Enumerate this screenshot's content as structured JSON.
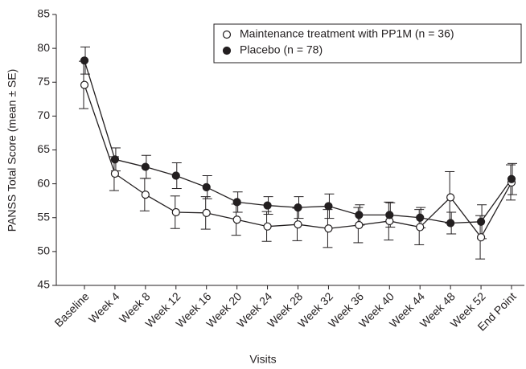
{
  "chart_data": {
    "type": "line",
    "x_label": "Visits",
    "y_label": "PANSS Total Score (mean ± SE)",
    "categories": [
      "Baseline",
      "Week 4",
      "Week 8",
      "Week 12",
      "Week 16",
      "Week 20",
      "Week 24",
      "Week 28",
      "Week 32",
      "Week 36",
      "Week 40",
      "Week 44",
      "Week 48",
      "Week 52",
      "End Point"
    ],
    "series": [
      {
        "name": "Maintenance treatment with PP1M (n = 36)",
        "color": "#231f20",
        "marker": "open",
        "values": [
          74.6,
          61.5,
          58.4,
          55.8,
          55.7,
          54.7,
          53.7,
          54.0,
          53.4,
          53.9,
          54.5,
          53.6,
          58.0,
          52.1,
          60.2
        ],
        "errors": [
          3.5,
          2.5,
          2.4,
          2.4,
          2.4,
          2.3,
          2.2,
          2.4,
          2.8,
          2.6,
          2.8,
          2.6,
          3.8,
          3.2,
          2.6
        ]
      },
      {
        "name": "Placebo (n = 78)",
        "color": "#231f20",
        "marker": "filled",
        "values": [
          78.2,
          63.6,
          62.5,
          61.2,
          59.5,
          57.3,
          56.8,
          56.5,
          56.7,
          55.4,
          55.4,
          55.0,
          54.2,
          54.4,
          60.7
        ],
        "errors": [
          2.0,
          1.7,
          1.7,
          1.9,
          1.7,
          1.5,
          1.3,
          1.6,
          1.8,
          1.5,
          1.8,
          1.5,
          1.6,
          2.5,
          2.3
        ]
      }
    ],
    "ylim": [
      45,
      85
    ],
    "yticks": [
      45,
      50,
      55,
      60,
      65,
      70,
      75,
      80,
      85
    ],
    "grid": false,
    "legend": "top-right"
  }
}
